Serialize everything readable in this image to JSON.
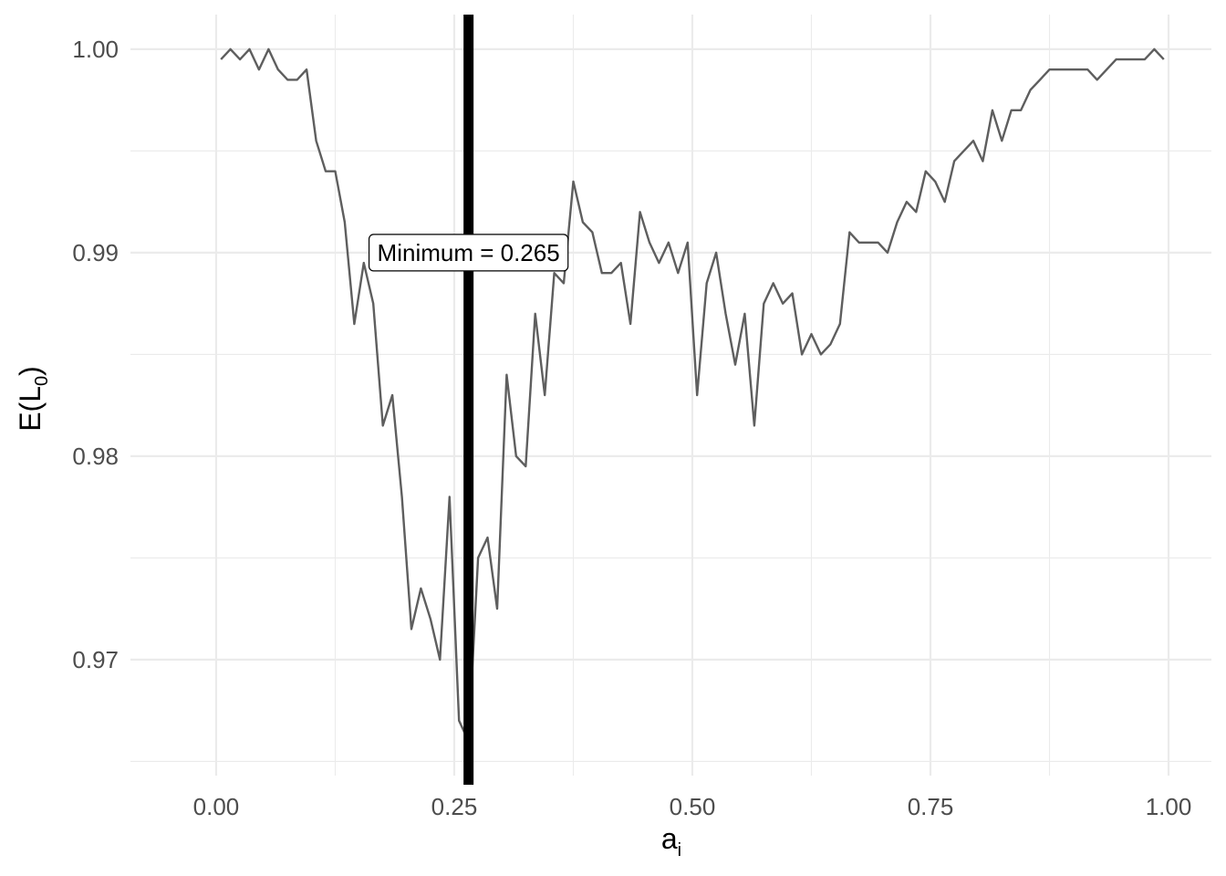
{
  "chart_data": {
    "type": "line",
    "xlabel": {
      "main": "a",
      "sub": "i"
    },
    "ylabel": {
      "main": "E(L",
      "sub": "0",
      "close": ")"
    },
    "xlim": [
      -0.09,
      1.045
    ],
    "ylim": [
      0.9643,
      1.0017
    ],
    "x_ticks": [
      0,
      0.25,
      0.5,
      0.75,
      1
    ],
    "x_tick_labels": [
      "0.00",
      "0.25",
      "0.50",
      "0.75",
      "1.00"
    ],
    "y_ticks": [
      0.97,
      0.98,
      0.99,
      1.0
    ],
    "y_tick_labels": [
      "0.97",
      "0.98",
      "0.99",
      "1.00"
    ],
    "grid": true,
    "series_color": "#5e5e5e",
    "vline": {
      "x": 0.265,
      "color": "#000000"
    },
    "annotation": {
      "text": "Minimum = 0.265",
      "x": 0.265,
      "y": 0.99
    },
    "series": [
      {
        "x": [
          0.005,
          0.015,
          0.025,
          0.035,
          0.045,
          0.055,
          0.065,
          0.075,
          0.085,
          0.095,
          0.105,
          0.115,
          0.125,
          0.135,
          0.145,
          0.155,
          0.165,
          0.175,
          0.185,
          0.195,
          0.205,
          0.215,
          0.225,
          0.235,
          0.245,
          0.255,
          0.265,
          0.275,
          0.285,
          0.295,
          0.305,
          0.315,
          0.325,
          0.335,
          0.345,
          0.355,
          0.365,
          0.375,
          0.385,
          0.395,
          0.405,
          0.415,
          0.425,
          0.435,
          0.445,
          0.455,
          0.465,
          0.475,
          0.485,
          0.495,
          0.505,
          0.515,
          0.525,
          0.535,
          0.545,
          0.555,
          0.565,
          0.575,
          0.585,
          0.595,
          0.605,
          0.615,
          0.625,
          0.635,
          0.645,
          0.655,
          0.665,
          0.675,
          0.685,
          0.695,
          0.705,
          0.715,
          0.725,
          0.735,
          0.745,
          0.755,
          0.765,
          0.775,
          0.785,
          0.795,
          0.805,
          0.815,
          0.825,
          0.835,
          0.845,
          0.855,
          0.865,
          0.875,
          0.885,
          0.895,
          0.905,
          0.915,
          0.925,
          0.935,
          0.945,
          0.955,
          0.965,
          0.975,
          0.985,
          0.995
        ],
        "values": [
          0.9995,
          1.0,
          0.9995,
          1.0,
          0.999,
          1.0,
          0.999,
          0.9985,
          0.9985,
          0.999,
          0.9955,
          0.994,
          0.994,
          0.9915,
          0.9865,
          0.9895,
          0.9875,
          0.9815,
          0.983,
          0.978,
          0.9715,
          0.9735,
          0.972,
          0.97,
          0.978,
          0.967,
          0.966,
          0.975,
          0.976,
          0.9725,
          0.984,
          0.98,
          0.9795,
          0.987,
          0.983,
          0.989,
          0.9885,
          0.9935,
          0.9915,
          0.991,
          0.989,
          0.989,
          0.9895,
          0.9865,
          0.992,
          0.9905,
          0.9895,
          0.9905,
          0.989,
          0.9905,
          0.983,
          0.9885,
          0.99,
          0.987,
          0.9845,
          0.987,
          0.9815,
          0.9875,
          0.9885,
          0.9875,
          0.988,
          0.985,
          0.986,
          0.985,
          0.9855,
          0.9865,
          0.991,
          0.9905,
          0.9905,
          0.9905,
          0.99,
          0.9915,
          0.9925,
          0.992,
          0.994,
          0.9935,
          0.9925,
          0.9945,
          0.995,
          0.9955,
          0.9945,
          0.997,
          0.9955,
          0.997,
          0.997,
          0.998,
          0.9985,
          0.999,
          0.999,
          0.999,
          0.999,
          0.999,
          0.9985,
          0.999,
          0.9995,
          0.9995,
          0.9995,
          0.9995,
          1.0,
          0.9995
        ]
      }
    ]
  }
}
